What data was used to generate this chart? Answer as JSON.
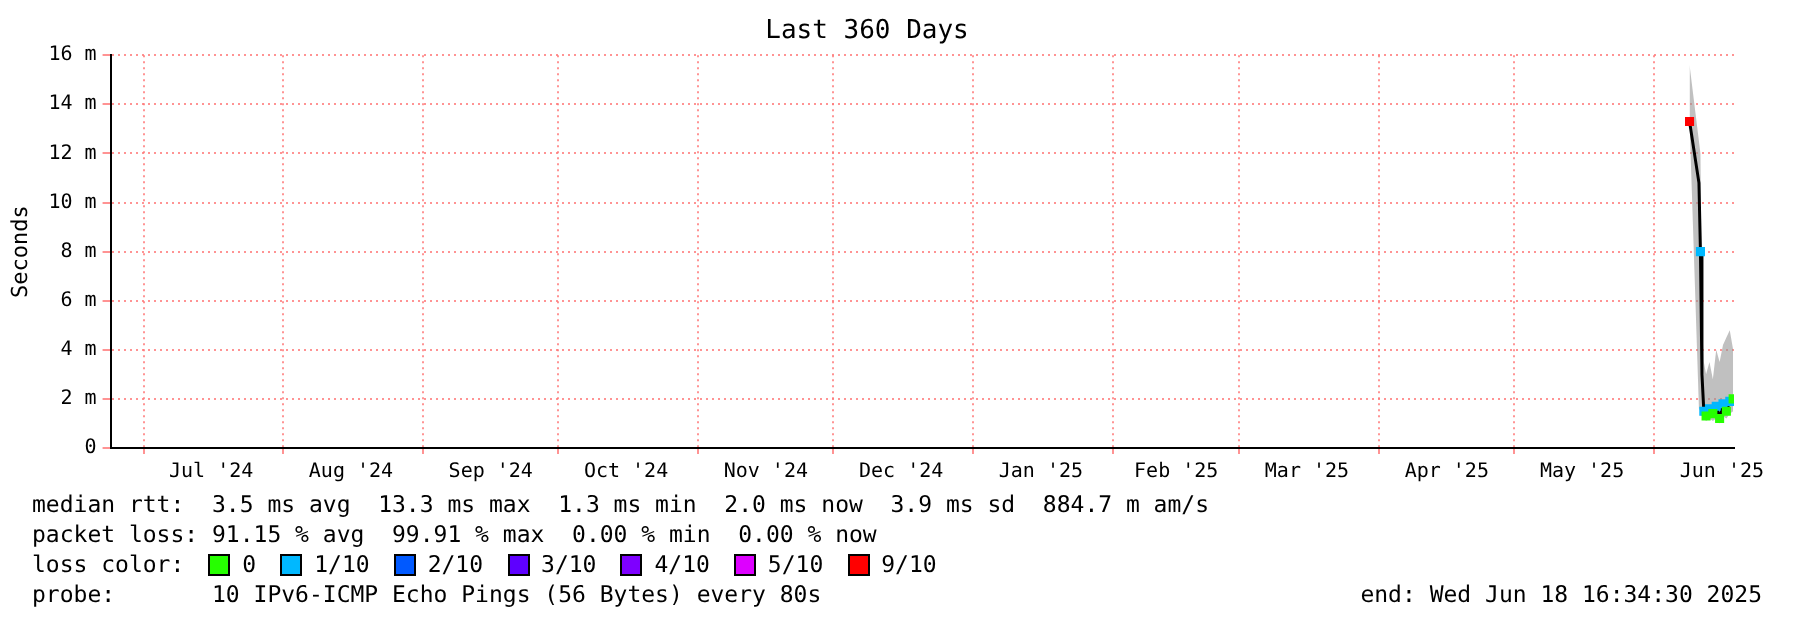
{
  "chart_data": {
    "type": "line",
    "title": "Last 360 Days",
    "ylabel": "Seconds",
    "legend_title": "loss color:",
    "legend": "bottom",
    "grid": true,
    "x": [
      "2025-06-08T20:00",
      "2025-06-10T22:00",
      "2025-06-11T06:00",
      "2025-06-11T14:00",
      "2025-06-12T00:00",
      "2025-06-12T12:00",
      "2025-06-13T06:00",
      "2025-06-14T00:00",
      "2025-06-14T18:00",
      "2025-06-15T12:00",
      "2025-06-16T06:00",
      "2025-06-17T00:00",
      "2025-06-17T18:00",
      "2025-06-18T12:00"
    ],
    "xlim": [
      "2024-06-23T16:34",
      "2025-06-18T16:34"
    ],
    "xticks": [
      {
        "value": "2024-07-01",
        "label": null
      },
      {
        "value": "2024-07-16",
        "label": "Jul '24"
      },
      {
        "value": "2024-08-01",
        "label": null
      },
      {
        "value": "2024-08-16",
        "label": "Aug '24"
      },
      {
        "value": "2024-09-01",
        "label": null
      },
      {
        "value": "2024-09-16",
        "label": "Sep '24"
      },
      {
        "value": "2024-10-01",
        "label": null
      },
      {
        "value": "2024-10-16",
        "label": "Oct '24"
      },
      {
        "value": "2024-11-01",
        "label": null
      },
      {
        "value": "2024-11-16",
        "label": "Nov '24"
      },
      {
        "value": "2024-12-01",
        "label": null
      },
      {
        "value": "2024-12-16",
        "label": "Dec '24"
      },
      {
        "value": "2025-01-01",
        "label": null
      },
      {
        "value": "2025-01-16",
        "label": "Jan '25"
      },
      {
        "value": "2025-02-01",
        "label": null
      },
      {
        "value": "2025-02-15",
        "label": "Feb '25"
      },
      {
        "value": "2025-03-01",
        "label": null
      },
      {
        "value": "2025-03-16",
        "label": "Mar '25"
      },
      {
        "value": "2025-04-01",
        "label": null
      },
      {
        "value": "2025-04-16",
        "label": "Apr '25"
      },
      {
        "value": "2025-05-01",
        "label": null
      },
      {
        "value": "2025-05-16",
        "label": "May '25"
      },
      {
        "value": "2025-06-01",
        "label": null
      },
      {
        "value": "2025-06-16",
        "label": "Jun '25"
      }
    ],
    "ylim": [
      0,
      16
    ],
    "yticks": [
      0,
      {
        "value": 2,
        "label": "2 m"
      },
      {
        "value": 4,
        "label": "4 m"
      },
      {
        "value": 6,
        "label": "6 m"
      },
      {
        "value": 8,
        "label": "8 m"
      },
      {
        "value": 10,
        "label": "10 m"
      },
      {
        "value": 12,
        "label": "12 m"
      },
      {
        "value": 14,
        "label": "14 m"
      },
      {
        "value": 16,
        "label": "16 m"
      }
    ],
    "series": [
      {
        "type": "line",
        "color": "#000000",
        "values": [
          13.3,
          10.8,
          8,
          3,
          1.5,
          1.3,
          1.6,
          1.4,
          1.7,
          1.2,
          1.8,
          1.5,
          1.9,
          2
        ],
        "lower": [
          13.3,
          1.6,
          1.5,
          1.3,
          1.2,
          1.1,
          1.2,
          1.1,
          1.2,
          1,
          1.3,
          1.2,
          1.4,
          1.5
        ],
        "upper": [
          15.6,
          12.5,
          12,
          5.2,
          3.5,
          3,
          3.5,
          2.8,
          4,
          3.5,
          4.2,
          4.5,
          4.8,
          4
        ]
      },
      {
        "type": "scatter",
        "name": "0",
        "color": "#26ff00",
        "marker": "square",
        "values": [
          null,
          null,
          null,
          null,
          null,
          1.3,
          null,
          1.4,
          null,
          1.2,
          null,
          1.5,
          null,
          2
        ]
      },
      {
        "type": "scatter",
        "name": "1/10",
        "color": "#00b8ff",
        "marker": "square",
        "values": [
          null,
          null,
          8,
          null,
          1.5,
          null,
          1.6,
          null,
          1.7,
          null,
          1.8,
          null,
          1.9,
          null
        ]
      },
      {
        "type": "scatter",
        "name": "2/10",
        "color": "#0059ff",
        "marker": "square",
        "values": [
          null,
          null,
          null,
          null,
          null,
          null,
          null,
          null,
          null,
          null,
          null,
          null,
          null,
          null
        ]
      },
      {
        "type": "scatter",
        "name": "3/10",
        "color": "#5e00ff",
        "marker": "square",
        "values": [
          null,
          null,
          null,
          null,
          null,
          null,
          null,
          null,
          null,
          null,
          null,
          null,
          null,
          null
        ]
      },
      {
        "type": "scatter",
        "name": "4/10",
        "color": "#7e00ff",
        "marker": "square",
        "values": [
          null,
          null,
          null,
          null,
          null,
          null,
          null,
          null,
          null,
          null,
          null,
          null,
          null,
          null
        ]
      },
      {
        "type": "scatter",
        "name": "5/10",
        "color": "#dd00ff",
        "marker": "square",
        "values": [
          null,
          null,
          null,
          null,
          null,
          null,
          null,
          null,
          null,
          null,
          null,
          null,
          null,
          null
        ]
      },
      {
        "type": "scatter",
        "name": "9/10",
        "color": "#ff0000",
        "marker": "square",
        "values": [
          13.3,
          null,
          null,
          null,
          null,
          null,
          null,
          null,
          null,
          null,
          null,
          null,
          null,
          null
        ]
      }
    ],
    "annotations": [
      "median rtt:  3.5 ms avg  13.3 ms max  1.3 ms min  2.0 ms now  3.9 ms sd  884.7 m am/s",
      "packet loss: 91.15 % avg  99.91 % max  0.00 % min  0.00 % now",
      "probe:       10 IPv6-ICMP Echo Pings (56 Bytes) every 80s",
      "end: Wed Jun 18 16:34:30 2025"
    ]
  }
}
